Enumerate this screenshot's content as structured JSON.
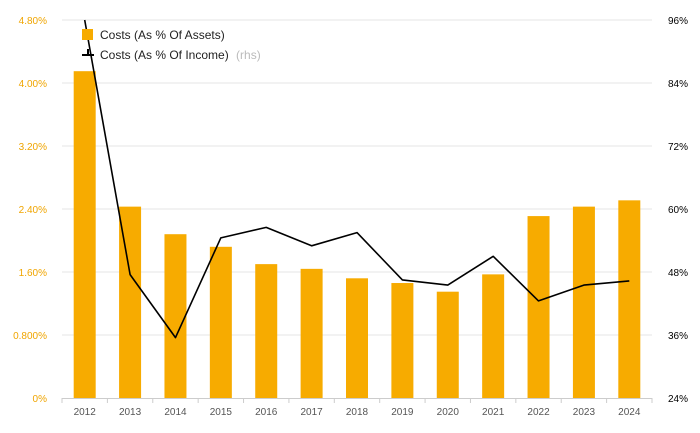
{
  "colors": {
    "bar": "#f7ab00",
    "line": "#000000",
    "grid": "#e6e6e6",
    "left_tick": "#f0a500",
    "right_tick": "#000000",
    "x_tick": "#555555",
    "legend_muted": "#bbbbbb"
  },
  "chart_data": {
    "type": "bar+line",
    "title": "",
    "categories": [
      "2012",
      "2013",
      "2014",
      "2015",
      "2016",
      "2017",
      "2018",
      "2019",
      "2020",
      "2021",
      "2022",
      "2023",
      "2024"
    ],
    "series": [
      {
        "name": "Costs (As % Of Assets)",
        "type": "bar",
        "axis": "left",
        "values": [
          4.15,
          2.43,
          2.08,
          1.92,
          1.7,
          1.64,
          1.52,
          1.46,
          1.35,
          1.57,
          2.31,
          2.43,
          2.51
        ]
      },
      {
        "name": "Costs (As % Of Income)",
        "name_suffix": "(rhs)",
        "type": "line",
        "axis": "right",
        "values": [
          96.0,
          47.5,
          35.5,
          54.5,
          56.5,
          53.0,
          55.5,
          46.5,
          45.5,
          51.0,
          42.5,
          45.5,
          46.3
        ]
      }
    ],
    "y_left": {
      "range": [
        0,
        4.8
      ],
      "ticks": [
        0,
        0.8,
        1.6,
        2.4,
        3.2,
        4.0,
        4.8
      ],
      "tick_labels": [
        "0%",
        "0.800%",
        "1.60%",
        "2.40%",
        "3.20%",
        "4.00%",
        "4.80%"
      ]
    },
    "y_right": {
      "range": [
        24,
        96
      ],
      "ticks": [
        24,
        36,
        48,
        60,
        72,
        84,
        96
      ],
      "tick_labels": [
        "24%",
        "36%",
        "48%",
        "60%",
        "72%",
        "84%",
        "96%"
      ]
    },
    "legend_position": "top-left",
    "grid": true
  }
}
